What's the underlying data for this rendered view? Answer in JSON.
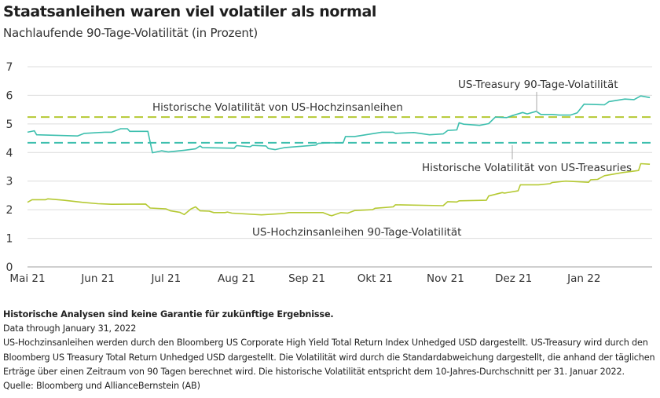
{
  "title": "Staatsanleihen waren viel volatiler als normal",
  "subtitle": "Nachlaufende 90-Tage-Volatilität (in Prozent)",
  "chart_data": {
    "type": "line",
    "title": "Staatsanleihen waren viel volatiler als normal",
    "subtitle": "Nachlaufende 90-Tage-Volatilität (in Prozent)",
    "xlim": [
      "2021-05-01",
      "2022-01-31"
    ],
    "ylim": [
      0,
      7
    ],
    "y_ticks": [
      "0",
      "1",
      "2",
      "3",
      "4",
      "5",
      "6",
      "7"
    ],
    "x_ticks": [
      {
        "label": "Mai 21",
        "date": "2021-05-01"
      },
      {
        "label": "Jun 21",
        "date": "2021-06-01"
      },
      {
        "label": "Jul 21",
        "date": "2021-07-01"
      },
      {
        "label": "Aug 21",
        "date": "2021-08-01"
      },
      {
        "label": "Sep 21",
        "date": "2021-09-01"
      },
      {
        "label": "Okt 21",
        "date": "2021-10-01"
      },
      {
        "label": "Nov 21",
        "date": "2021-11-01"
      },
      {
        "label": "Dez 21",
        "date": "2021-12-01"
      },
      {
        "label": "Jan 22",
        "date": "2022-01-01"
      }
    ],
    "grid": true,
    "series": [
      {
        "name": "US-Treasury 90-Tage-Volatilität",
        "color": "#3dbfae",
        "points": [
          [
            "2021-05-01",
            4.71
          ],
          [
            "2021-05-04",
            4.76
          ],
          [
            "2021-05-05",
            4.62
          ],
          [
            "2021-05-23",
            4.58
          ],
          [
            "2021-05-26",
            4.67
          ],
          [
            "2021-06-04",
            4.71
          ],
          [
            "2021-06-07",
            4.71
          ],
          [
            "2021-06-11",
            4.83
          ],
          [
            "2021-06-14",
            4.83
          ],
          [
            "2021-06-15",
            4.74
          ],
          [
            "2021-06-23",
            4.74
          ],
          [
            "2021-06-25",
            3.99
          ],
          [
            "2021-06-29",
            4.06
          ],
          [
            "2021-07-02",
            4.02
          ],
          [
            "2021-07-09",
            4.08
          ],
          [
            "2021-07-14",
            4.13
          ],
          [
            "2021-07-16",
            4.23
          ],
          [
            "2021-07-17",
            4.17
          ],
          [
            "2021-07-31",
            4.15
          ],
          [
            "2021-08-01",
            4.24
          ],
          [
            "2021-08-07",
            4.2
          ],
          [
            "2021-08-08",
            4.25
          ],
          [
            "2021-08-14",
            4.23
          ],
          [
            "2021-08-15",
            4.14
          ],
          [
            "2021-08-18",
            4.1
          ],
          [
            "2021-08-22",
            4.17
          ],
          [
            "2021-09-05",
            4.26
          ],
          [
            "2021-09-06",
            4.32
          ],
          [
            "2021-09-11",
            4.34
          ],
          [
            "2021-09-17",
            4.34
          ],
          [
            "2021-09-18",
            4.56
          ],
          [
            "2021-09-22",
            4.56
          ],
          [
            "2021-10-04",
            4.71
          ],
          [
            "2021-10-09",
            4.71
          ],
          [
            "2021-10-10",
            4.67
          ],
          [
            "2021-10-18",
            4.7
          ],
          [
            "2021-10-25",
            4.62
          ],
          [
            "2021-10-31",
            4.65
          ],
          [
            "2021-11-02",
            4.77
          ],
          [
            "2021-11-06",
            4.79
          ],
          [
            "2021-11-07",
            5.04
          ],
          [
            "2021-11-09",
            4.99
          ],
          [
            "2021-11-16",
            4.95
          ],
          [
            "2021-11-20",
            5.01
          ],
          [
            "2021-11-23",
            5.24
          ],
          [
            "2021-11-28",
            5.22
          ],
          [
            "2021-11-30",
            5.28
          ],
          [
            "2021-12-05",
            5.4
          ],
          [
            "2021-12-07",
            5.35
          ],
          [
            "2021-12-11",
            5.44
          ],
          [
            "2021-12-13",
            5.33
          ],
          [
            "2021-12-18",
            5.33
          ],
          [
            "2021-12-21",
            5.31
          ],
          [
            "2021-12-26",
            5.31
          ],
          [
            "2021-12-29",
            5.39
          ],
          [
            "2022-01-01",
            5.69
          ],
          [
            "2022-01-10",
            5.67
          ],
          [
            "2022-01-12",
            5.78
          ],
          [
            "2022-01-19",
            5.87
          ],
          [
            "2022-01-23",
            5.85
          ],
          [
            "2022-01-26",
            5.98
          ],
          [
            "2022-01-30",
            5.92
          ]
        ]
      },
      {
        "name": "US-Hochzinsanleihen 90-Tage-Volatilität",
        "color": "#b5c933",
        "points": [
          [
            "2021-05-01",
            2.26
          ],
          [
            "2021-05-03",
            2.35
          ],
          [
            "2021-05-09",
            2.35
          ],
          [
            "2021-05-10",
            2.38
          ],
          [
            "2021-05-17",
            2.33
          ],
          [
            "2021-05-25",
            2.26
          ],
          [
            "2021-06-01",
            2.21
          ],
          [
            "2021-06-07",
            2.19
          ],
          [
            "2021-06-22",
            2.2
          ],
          [
            "2021-06-24",
            2.06
          ],
          [
            "2021-07-01",
            2.03
          ],
          [
            "2021-07-03",
            1.96
          ],
          [
            "2021-07-07",
            1.91
          ],
          [
            "2021-07-09",
            1.83
          ],
          [
            "2021-07-12",
            2.03
          ],
          [
            "2021-07-14",
            2.1
          ],
          [
            "2021-07-16",
            1.96
          ],
          [
            "2021-07-20",
            1.95
          ],
          [
            "2021-07-22",
            1.9
          ],
          [
            "2021-07-27",
            1.9
          ],
          [
            "2021-07-28",
            1.92
          ],
          [
            "2021-07-30",
            1.88
          ],
          [
            "2021-08-12",
            1.82
          ],
          [
            "2021-08-22",
            1.87
          ],
          [
            "2021-08-24",
            1.9
          ],
          [
            "2021-09-08",
            1.9
          ],
          [
            "2021-09-11",
            1.81
          ],
          [
            "2021-09-12",
            1.79
          ],
          [
            "2021-09-16",
            1.9
          ],
          [
            "2021-09-19",
            1.88
          ],
          [
            "2021-09-22",
            1.97
          ],
          [
            "2021-09-30",
            2.0
          ],
          [
            "2021-10-01",
            2.05
          ],
          [
            "2021-10-09",
            2.1
          ],
          [
            "2021-10-10",
            2.17
          ],
          [
            "2021-10-31",
            2.14
          ],
          [
            "2021-11-02",
            2.28
          ],
          [
            "2021-11-06",
            2.27
          ],
          [
            "2021-11-07",
            2.31
          ],
          [
            "2021-11-19",
            2.33
          ],
          [
            "2021-11-20",
            2.48
          ],
          [
            "2021-11-26",
            2.6
          ],
          [
            "2021-11-27",
            2.58
          ],
          [
            "2021-12-03",
            2.66
          ],
          [
            "2021-12-04",
            2.87
          ],
          [
            "2021-12-12",
            2.87
          ],
          [
            "2021-12-17",
            2.91
          ],
          [
            "2021-12-18",
            2.95
          ],
          [
            "2021-12-24",
            3.0
          ],
          [
            "2022-01-03",
            2.96
          ],
          [
            "2022-01-04",
            3.05
          ],
          [
            "2022-01-07",
            3.06
          ],
          [
            "2022-01-10",
            3.19
          ],
          [
            "2022-01-18",
            3.3
          ],
          [
            "2022-01-25",
            3.37
          ],
          [
            "2022-01-26",
            3.61
          ],
          [
            "2022-01-30",
            3.59
          ]
        ]
      }
    ],
    "reference_lines": [
      {
        "name": "Historische Volatilität von US-Hochzinsanleihen",
        "value": 5.24,
        "color": "#b5c933",
        "style": "dashed"
      },
      {
        "name": "Historische Volatilität von US-Treasuries",
        "value": 4.34,
        "color": "#3dbfae",
        "style": "dashed"
      }
    ]
  },
  "notes": {
    "disclaimer": "Historische Analysen sind keine Garantie für zukünftige Ergebnisse.",
    "data_through": "Data through January 31, 2022",
    "description": "US-Hochzinsanleihen werden durch den Bloomberg US Corporate High Yield Total Return Index Unhedged USD dargestellt. US-Treasury wird durch den Bloomberg US Treasury Total Return Unhedged USD dargestellt. Die Volatilität wird durch die Standardabweichung dargestellt, die anhand der täglichen Erträge über einen Zeitraum von 90 Tagen berechnet wird. Die historische Volatilität entspricht dem 10-Jahres-Durchschnitt per 31. Januar 2022.",
    "source": "Quelle: Bloomberg und AllianceBernstein (AB)"
  }
}
